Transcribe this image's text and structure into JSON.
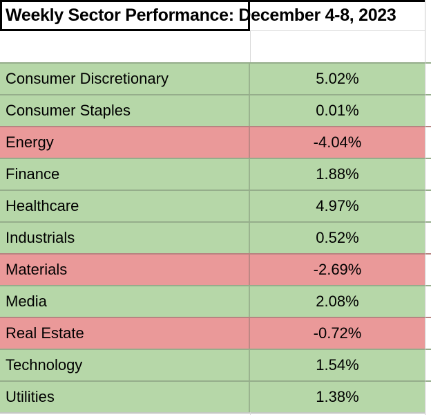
{
  "title": "Weekly Sector Performance: December 4-8, 2023",
  "colors": {
    "positive_fill": "#b6d7a8",
    "negative_fill": "#ea9999",
    "title_border": "#000000",
    "gridline": "#d9d9d9",
    "text": "#000000"
  },
  "table": {
    "rows": [
      {
        "sector": "Consumer Discretionary",
        "change": "5.02%",
        "status": "positive"
      },
      {
        "sector": "Consumer Staples",
        "change": "0.01%",
        "status": "positive"
      },
      {
        "sector": "Energy",
        "change": "-4.04%",
        "status": "negative"
      },
      {
        "sector": "Finance",
        "change": "1.88%",
        "status": "positive"
      },
      {
        "sector": "Healthcare",
        "change": "4.97%",
        "status": "positive"
      },
      {
        "sector": "Industrials",
        "change": "0.52%",
        "status": "positive"
      },
      {
        "sector": "Materials",
        "change": "-2.69%",
        "status": "negative"
      },
      {
        "sector": "Media",
        "change": "2.08%",
        "status": "positive"
      },
      {
        "sector": "Real Estate",
        "change": "-0.72%",
        "status": "negative"
      },
      {
        "sector": "Technology",
        "change": "1.54%",
        "status": "positive"
      },
      {
        "sector": "Utilities",
        "change": "1.38%",
        "status": "positive"
      }
    ]
  },
  "chart_data": {
    "type": "table",
    "title": "Weekly Sector Performance: December 4-8, 2023",
    "categories": [
      "Consumer Discretionary",
      "Consumer Staples",
      "Energy",
      "Finance",
      "Healthcare",
      "Industrials",
      "Materials",
      "Media",
      "Real Estate",
      "Technology",
      "Utilities"
    ],
    "values": [
      5.02,
      0.01,
      -4.04,
      1.88,
      4.97,
      0.52,
      -2.69,
      2.08,
      -0.72,
      1.54,
      1.38
    ],
    "value_unit": "%",
    "color_rule": "green fill = positive weekly change, red fill = negative weekly change"
  }
}
